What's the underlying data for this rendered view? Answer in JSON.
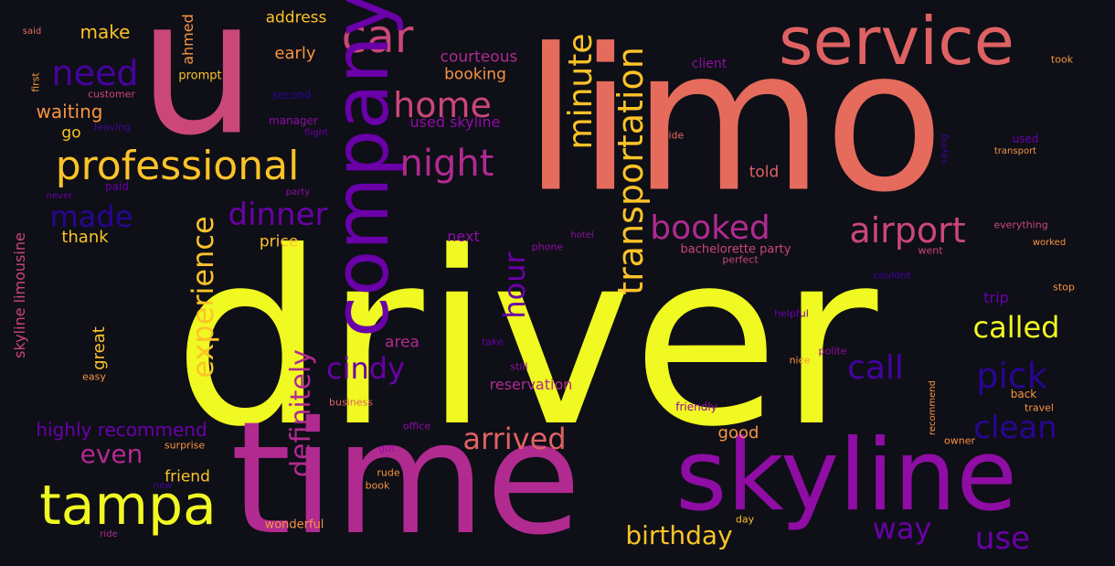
{
  "colors": {
    "background": "#0e0f17",
    "yellow": "#f0f921",
    "light_yellow": "#f2e026",
    "gold": "#fdc328",
    "orange": "#f89441",
    "salmon": "#e56b5d",
    "coral": "#df6263",
    "pink": "#cb4778",
    "magenta": "#b12a90",
    "purple": "#8f0da4",
    "violet": "#6a00a8",
    "indigo": "#46039f",
    "navy": "#2a0593"
  },
  "words": [
    {
      "text": "driver",
      "color": "yellow"
    },
    {
      "text": "limo",
      "color": "salmon"
    },
    {
      "text": "u",
      "color": "pink"
    },
    {
      "text": "time",
      "color": "magenta"
    },
    {
      "text": "skyline",
      "color": "purple"
    },
    {
      "text": "service",
      "color": "coral"
    },
    {
      "text": "car",
      "color": "pink"
    },
    {
      "text": "company",
      "color": "violet"
    },
    {
      "text": "professional",
      "color": "gold"
    },
    {
      "text": "tampa",
      "color": "yellow"
    },
    {
      "text": "need",
      "color": "indigo"
    },
    {
      "text": "home",
      "color": "pink"
    },
    {
      "text": "night",
      "color": "magenta"
    },
    {
      "text": "minute",
      "color": "gold"
    },
    {
      "text": "transportation",
      "color": "gold"
    },
    {
      "text": "booked",
      "color": "magenta"
    },
    {
      "text": "airport",
      "color": "pink"
    },
    {
      "text": "dinner",
      "color": "violet"
    },
    {
      "text": "made",
      "color": "navy"
    },
    {
      "text": "experience",
      "color": "gold"
    },
    {
      "text": "hour",
      "color": "violet"
    },
    {
      "text": "definitely",
      "color": "magenta"
    },
    {
      "text": "cindy",
      "color": "violet"
    },
    {
      "text": "called",
      "color": "yellow"
    },
    {
      "text": "call",
      "color": "indigo"
    },
    {
      "text": "pick",
      "color": "navy"
    },
    {
      "text": "clean",
      "color": "navy"
    },
    {
      "text": "arrived",
      "color": "coral"
    },
    {
      "text": "even",
      "color": "magenta"
    },
    {
      "text": "highly recommend",
      "color": "violet"
    },
    {
      "text": "birthday",
      "color": "gold"
    },
    {
      "text": "way",
      "color": "violet"
    },
    {
      "text": "use",
      "color": "violet"
    },
    {
      "text": "waiting",
      "color": "orange"
    },
    {
      "text": "make",
      "color": "gold"
    },
    {
      "text": "address",
      "color": "gold"
    },
    {
      "text": "early",
      "color": "orange"
    },
    {
      "text": "courteous",
      "color": "magenta"
    },
    {
      "text": "booking",
      "color": "orange"
    },
    {
      "text": "ahmed",
      "color": "orange"
    },
    {
      "text": "prompt",
      "color": "gold"
    },
    {
      "text": "go",
      "color": "gold"
    },
    {
      "text": "used skyline",
      "color": "purple"
    },
    {
      "text": "client",
      "color": "purple"
    },
    {
      "text": "took",
      "color": "orange"
    },
    {
      "text": "told",
      "color": "coral"
    },
    {
      "text": "reservation",
      "color": "magenta"
    },
    {
      "text": "area",
      "color": "magenta"
    },
    {
      "text": "thank",
      "color": "gold"
    },
    {
      "text": "price",
      "color": "gold"
    },
    {
      "text": "next",
      "color": "purple"
    },
    {
      "text": "great",
      "color": "gold"
    },
    {
      "text": "skyline limousine",
      "color": "pink"
    },
    {
      "text": "bachelorette party",
      "color": "pink"
    },
    {
      "text": "trip",
      "color": "violet"
    },
    {
      "text": "good",
      "color": "orange"
    },
    {
      "text": "friend",
      "color": "gold"
    },
    {
      "text": "wonderful",
      "color": "orange"
    },
    {
      "text": "said",
      "color": "salmon"
    },
    {
      "text": "first",
      "color": "orange"
    },
    {
      "text": "customer",
      "color": "pink"
    },
    {
      "text": "second",
      "color": "navy"
    },
    {
      "text": "manager",
      "color": "purple"
    },
    {
      "text": "flight",
      "color": "violet"
    },
    {
      "text": "inside",
      "color": "salmon"
    },
    {
      "text": "used",
      "color": "violet"
    },
    {
      "text": "transport",
      "color": "orange"
    },
    {
      "text": "leaving",
      "color": "indigo"
    },
    {
      "text": "paid",
      "color": "violet"
    },
    {
      "text": "never",
      "color": "violet"
    },
    {
      "text": "party",
      "color": "purple"
    },
    {
      "text": "everything",
      "color": "pink"
    },
    {
      "text": "worked",
      "color": "orange"
    },
    {
      "text": "phone",
      "color": "purple"
    },
    {
      "text": "hotel",
      "color": "purple"
    },
    {
      "text": "went",
      "color": "pink"
    },
    {
      "text": "perfect",
      "color": "pink"
    },
    {
      "text": "couldnt",
      "color": "indigo"
    },
    {
      "text": "stop",
      "color": "orange"
    },
    {
      "text": "helpful",
      "color": "violet"
    },
    {
      "text": "polite",
      "color": "purple"
    },
    {
      "text": "nice",
      "color": "orange"
    },
    {
      "text": "take",
      "color": "violet"
    },
    {
      "text": "still",
      "color": "purple"
    },
    {
      "text": "easy",
      "color": "orange"
    },
    {
      "text": "business",
      "color": "coral"
    },
    {
      "text": "friendly",
      "color": "purple"
    },
    {
      "text": "back",
      "color": "orange"
    },
    {
      "text": "travel",
      "color": "orange"
    },
    {
      "text": "recommend",
      "color": "orange"
    },
    {
      "text": "office",
      "color": "purple"
    },
    {
      "text": "surprise",
      "color": "orange"
    },
    {
      "text": "got",
      "color": "purple"
    },
    {
      "text": "owner",
      "color": "orange"
    },
    {
      "text": "rude",
      "color": "orange"
    },
    {
      "text": "book",
      "color": "orange"
    },
    {
      "text": "new",
      "color": "indigo"
    },
    {
      "text": "ride",
      "color": "magenta"
    },
    {
      "text": "day",
      "color": "gold"
    },
    {
      "text": "saying",
      "color": "indigo"
    }
  ]
}
